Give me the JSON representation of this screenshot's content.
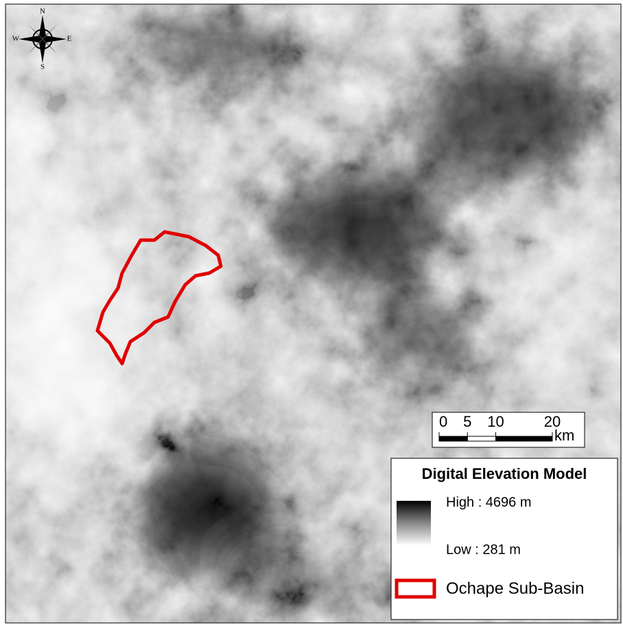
{
  "compass": {
    "north": "N",
    "south": "S",
    "east": "E",
    "west": "W"
  },
  "scale_bar": {
    "ticks": [
      0,
      5,
      10,
      20
    ],
    "unit": "km"
  },
  "legend": {
    "title": "Digital Elevation Model",
    "high": "High : 4696 m",
    "low": "Low : 281 m",
    "boundary": "Ochape Sub-Basin"
  }
}
